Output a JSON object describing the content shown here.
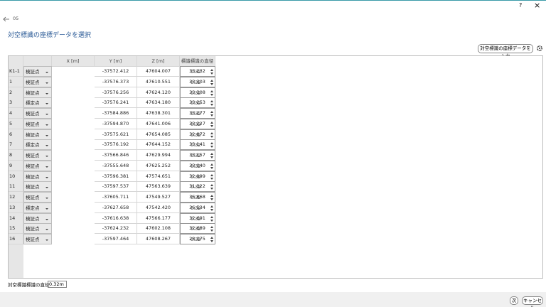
{
  "window": {
    "help": "?",
    "close": "×"
  },
  "nav": {
    "step": "05"
  },
  "header": {
    "title": "対空標識の座標データを選択"
  },
  "toolbar": {
    "input_button": "対空標識の座標データを入力"
  },
  "table": {
    "columns": [
      "X [m]",
      "Y [m]",
      "Z [m]",
      "標識標識の直径"
    ],
    "rows": [
      [
        "K1-1",
        "検証点",
        "-37572.412",
        "47604.007",
        "33.232",
        "0.32"
      ],
      [
        "1",
        "検証点",
        "-37576.373",
        "47610.551",
        "33.303",
        "0.32"
      ],
      [
        "2",
        "検証点",
        "-37576.256",
        "47624.120",
        "33.308",
        "0.32"
      ],
      [
        "3",
        "標定点",
        "-37576.241",
        "47634.180",
        "33.253",
        "0.32"
      ],
      [
        "4",
        "検証点",
        "-37584.886",
        "47638.301",
        "33.277",
        "0.32"
      ],
      [
        "5",
        "検証点",
        "-37594.870",
        "47641.006",
        "33.227",
        "0.32"
      ],
      [
        "6",
        "検証点",
        "-37575.621",
        "47654.085",
        "32.872",
        "0.32"
      ],
      [
        "7",
        "標定点",
        "-37576.192",
        "47644.152",
        "33.141",
        "0.32"
      ],
      [
        "8",
        "検証点",
        "-37566.846",
        "47629.994",
        "33.157",
        "0.32"
      ],
      [
        "9",
        "検証点",
        "-37555.648",
        "47625.252",
        "33.040",
        "0.32"
      ],
      [
        "10",
        "検証点",
        "-37596.381",
        "47574.651",
        "32.999",
        "0.32"
      ],
      [
        "11",
        "検証点",
        "-37597.537",
        "47563.639",
        "31.322",
        "0.32"
      ],
      [
        "12",
        "検証点",
        "-37605.711",
        "47549.527",
        "36.868",
        "0.32"
      ],
      [
        "13",
        "標定点",
        "-37627.658",
        "47542.420",
        "36.534",
        "0.32"
      ],
      [
        "14",
        "検証点",
        "-37616.638",
        "47566.177",
        "32.691",
        "0.32"
      ],
      [
        "15",
        "検証点",
        "-37624.232",
        "47602.108",
        "32.689",
        "0.32"
      ],
      [
        "16",
        "検証点",
        "-37597.464",
        "47608.267",
        "28.075",
        "0.32"
      ]
    ]
  },
  "footer": {
    "diameter_label": "対空標識標識の直径",
    "diameter_value": "0.32m",
    "next": "次",
    "cancel": "キャンセル"
  }
}
